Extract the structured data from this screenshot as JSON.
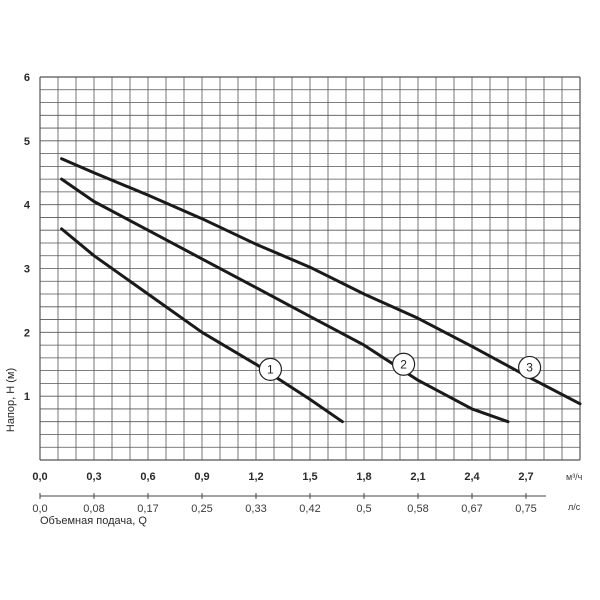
{
  "chart_data": {
    "type": "line",
    "ylabel": "Напор, Н (м)",
    "xlabel": "Объемная подача, Q",
    "x_unit": "м³/ч",
    "x2_unit": "л/с",
    "xlim": [
      0,
      3.0
    ],
    "ylim": [
      0,
      6
    ],
    "grid": true,
    "x_ticks": [
      "0,0",
      "0,3",
      "0,6",
      "0,9",
      "1,2",
      "1,5",
      "1,8",
      "2,1",
      "2,4",
      "2,7"
    ],
    "x_tick_values": [
      0,
      0.3,
      0.6,
      0.9,
      1.2,
      1.5,
      1.8,
      2.1,
      2.4,
      2.7
    ],
    "x2_ticks": [
      "0,0",
      "0,08",
      "0,17",
      "0,25",
      "0,33",
      "0,42",
      "0,5",
      "0,58",
      "0,67",
      "0,75"
    ],
    "y_ticks": [
      "1",
      "2",
      "3",
      "4",
      "5",
      "6"
    ],
    "y_tick_values": [
      1,
      2,
      3,
      4,
      5,
      6
    ],
    "series": [
      {
        "name": "1",
        "points": [
          [
            0.12,
            3.62
          ],
          [
            0.3,
            3.2
          ],
          [
            0.6,
            2.6
          ],
          [
            0.9,
            2.0
          ],
          [
            1.2,
            1.5
          ],
          [
            1.5,
            0.95
          ],
          [
            1.68,
            0.6
          ]
        ],
        "label_at": [
          1.28,
          1.42
        ]
      },
      {
        "name": "2",
        "points": [
          [
            0.12,
            4.4
          ],
          [
            0.3,
            4.05
          ],
          [
            0.6,
            3.6
          ],
          [
            0.9,
            3.15
          ],
          [
            1.2,
            2.7
          ],
          [
            1.5,
            2.25
          ],
          [
            1.8,
            1.8
          ],
          [
            2.1,
            1.25
          ],
          [
            2.4,
            0.8
          ],
          [
            2.6,
            0.6
          ]
        ],
        "label_at": [
          2.02,
          1.5
        ]
      },
      {
        "name": "3",
        "points": [
          [
            0.12,
            4.72
          ],
          [
            0.3,
            4.5
          ],
          [
            0.6,
            4.15
          ],
          [
            0.9,
            3.78
          ],
          [
            1.2,
            3.38
          ],
          [
            1.5,
            3.02
          ],
          [
            1.8,
            2.6
          ],
          [
            2.1,
            2.22
          ],
          [
            2.4,
            1.78
          ],
          [
            2.7,
            1.32
          ],
          [
            3.0,
            0.88
          ]
        ],
        "label_at": [
          2.72,
          1.45
        ]
      }
    ]
  }
}
